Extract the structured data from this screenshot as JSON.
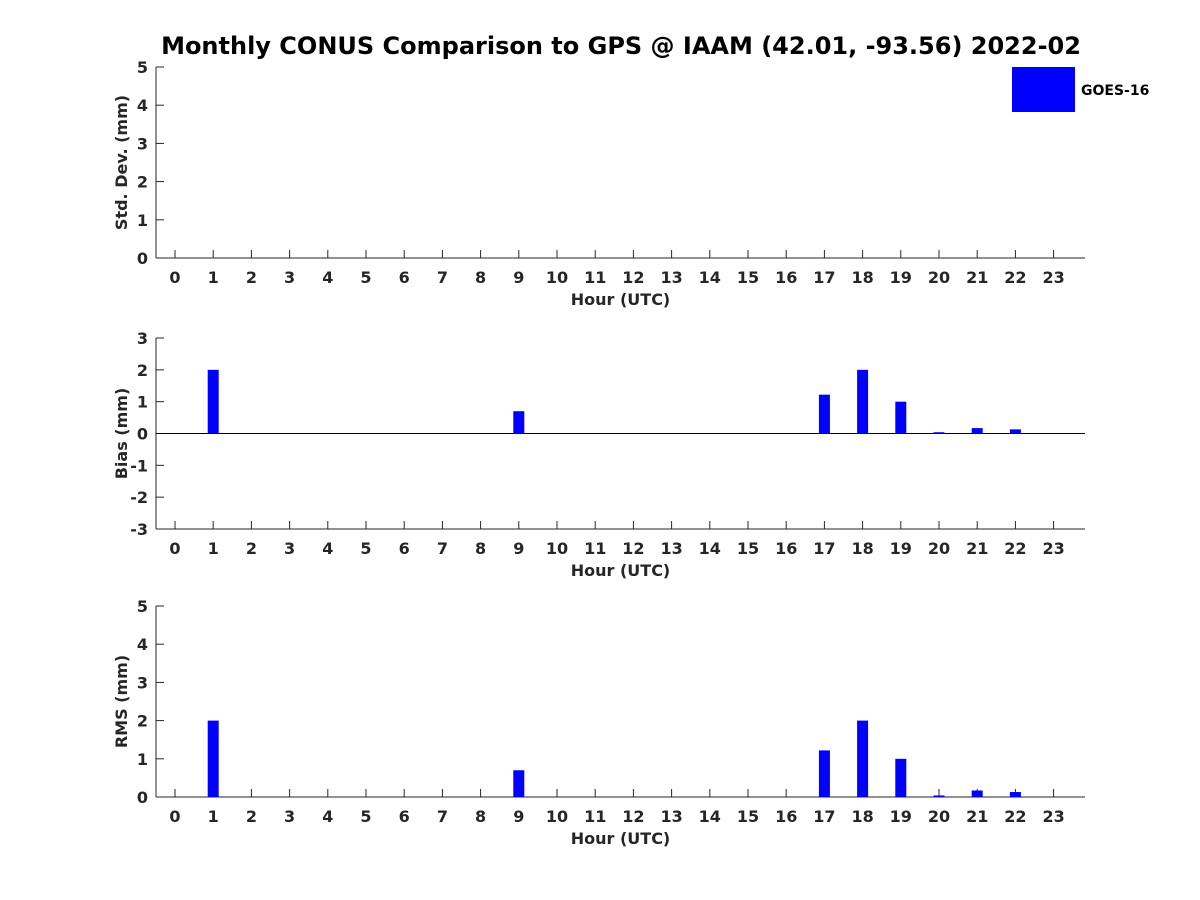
{
  "title": "Monthly CONUS Comparison to GPS @ IAAM (42.01, -93.56) 2022-02",
  "legend": {
    "label": "GOES-16",
    "color": "#0000ff"
  },
  "chart_data": [
    {
      "type": "bar",
      "id": "stddev",
      "ylabel": "Std. Dev. (mm)",
      "xlabel": "Hour (UTC)",
      "categories": [
        "0",
        "1",
        "2",
        "3",
        "4",
        "5",
        "6",
        "7",
        "8",
        "9",
        "10",
        "11",
        "12",
        "13",
        "14",
        "15",
        "16",
        "17",
        "18",
        "19",
        "20",
        "21",
        "22",
        "23"
      ],
      "yticks": [
        "0",
        "1",
        "2",
        "3",
        "4",
        "5"
      ],
      "ylim": [
        0,
        5
      ],
      "series": [
        {
          "name": "GOES-16",
          "values": [
            0,
            0,
            0,
            0,
            0,
            0,
            0,
            0,
            0,
            0,
            0,
            0,
            0,
            0,
            0,
            0,
            0,
            0,
            0,
            0,
            0,
            0,
            0,
            0
          ]
        }
      ]
    },
    {
      "type": "bar",
      "id": "bias",
      "ylabel": "Bias (mm)",
      "xlabel": "Hour (UTC)",
      "categories": [
        "0",
        "1",
        "2",
        "3",
        "4",
        "5",
        "6",
        "7",
        "8",
        "9",
        "10",
        "11",
        "12",
        "13",
        "14",
        "15",
        "16",
        "17",
        "18",
        "19",
        "20",
        "21",
        "22",
        "23"
      ],
      "yticks": [
        "-3",
        "-2",
        "-1",
        "0",
        "1",
        "2",
        "3"
      ],
      "ylim": [
        -3,
        3
      ],
      "zero_line": true,
      "series": [
        {
          "name": "GOES-16",
          "values": [
            0,
            2.0,
            0,
            0,
            0,
            0,
            0,
            0,
            0,
            0.7,
            0,
            0,
            0,
            0,
            0,
            0,
            0,
            1.22,
            2.0,
            1.0,
            0.04,
            0.17,
            0.13,
            0
          ]
        }
      ]
    },
    {
      "type": "bar",
      "id": "rms",
      "ylabel": "RMS (mm)",
      "xlabel": "Hour (UTC)",
      "categories": [
        "0",
        "1",
        "2",
        "3",
        "4",
        "5",
        "6",
        "7",
        "8",
        "9",
        "10",
        "11",
        "12",
        "13",
        "14",
        "15",
        "16",
        "17",
        "18",
        "19",
        "20",
        "21",
        "22",
        "23"
      ],
      "yticks": [
        "0",
        "1",
        "2",
        "3",
        "4",
        "5"
      ],
      "ylim": [
        0,
        5
      ],
      "series": [
        {
          "name": "GOES-16",
          "values": [
            0,
            2.0,
            0,
            0,
            0,
            0,
            0,
            0,
            0,
            0.7,
            0,
            0,
            0,
            0,
            0,
            0,
            0,
            1.22,
            2.0,
            1.0,
            0.04,
            0.17,
            0.13,
            0
          ]
        }
      ]
    }
  ]
}
